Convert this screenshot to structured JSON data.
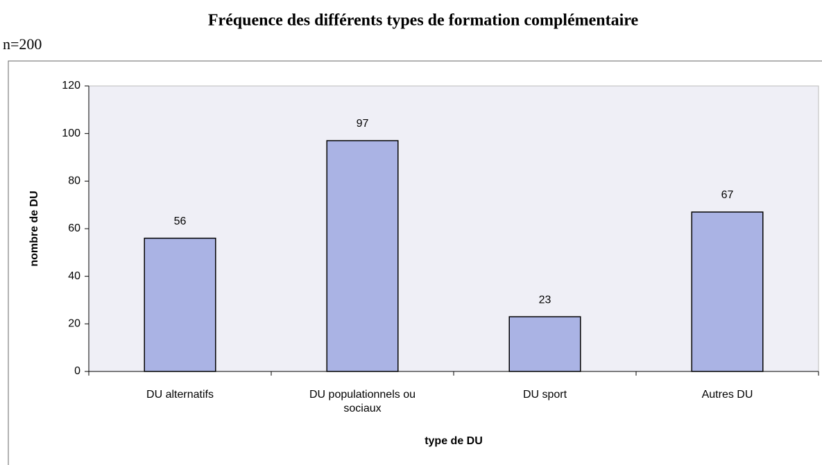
{
  "chart_data": {
    "type": "bar",
    "title": "Fréquence des différents types de formation complémentaire",
    "subtitle": "n=200",
    "x_label": "type de DU",
    "y_label": "nombre de DU",
    "categories": [
      "DU alternatifs",
      "DU populationnels ou sociaux",
      "DU sport",
      "Autres DU"
    ],
    "values": [
      56,
      97,
      23,
      67
    ],
    "color": "#aab3e4",
    "ylim": [
      0,
      120
    ],
    "yticks": [
      0,
      20,
      40,
      60,
      80,
      100,
      120
    ],
    "grid": false
  }
}
